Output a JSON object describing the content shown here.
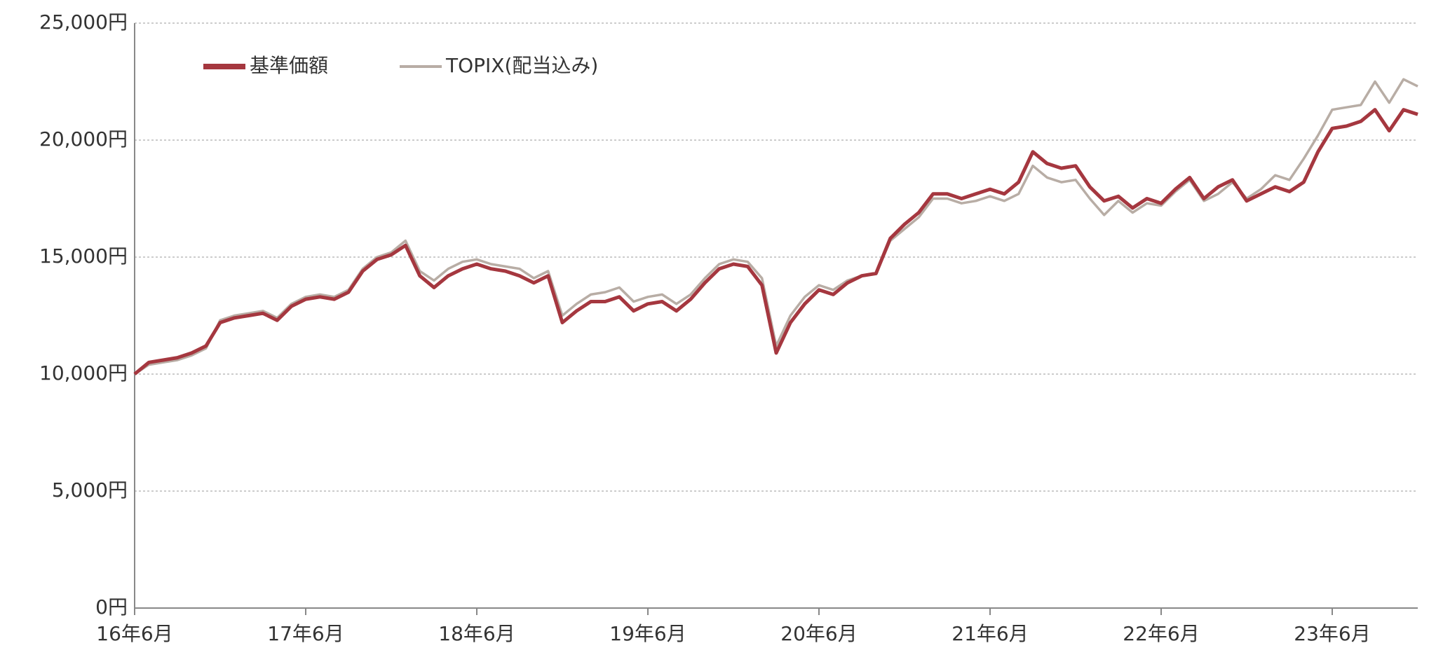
{
  "chart_data": {
    "type": "line",
    "x": [
      "2016-06",
      "2016-07",
      "2016-08",
      "2016-09",
      "2016-10",
      "2016-11",
      "2016-12",
      "2017-01",
      "2017-02",
      "2017-03",
      "2017-04",
      "2017-05",
      "2017-06",
      "2017-07",
      "2017-08",
      "2017-09",
      "2017-10",
      "2017-11",
      "2017-12",
      "2018-01",
      "2018-02",
      "2018-03",
      "2018-04",
      "2018-05",
      "2018-06",
      "2018-07",
      "2018-08",
      "2018-09",
      "2018-10",
      "2018-11",
      "2018-12",
      "2019-01",
      "2019-02",
      "2019-03",
      "2019-04",
      "2019-05",
      "2019-06",
      "2019-07",
      "2019-08",
      "2019-09",
      "2019-10",
      "2019-11",
      "2019-12",
      "2020-01",
      "2020-02",
      "2020-03",
      "2020-04",
      "2020-05",
      "2020-06",
      "2020-07",
      "2020-08",
      "2020-09",
      "2020-10",
      "2020-11",
      "2020-12",
      "2021-01",
      "2021-02",
      "2021-03",
      "2021-04",
      "2021-05",
      "2021-06",
      "2021-07",
      "2021-08",
      "2021-09",
      "2021-10",
      "2021-11",
      "2021-12",
      "2022-01",
      "2022-02",
      "2022-03",
      "2022-04",
      "2022-05",
      "2022-06",
      "2022-07",
      "2022-08",
      "2022-09",
      "2022-10",
      "2022-11",
      "2022-12",
      "2023-01",
      "2023-02",
      "2023-03",
      "2023-04",
      "2023-05",
      "2023-06",
      "2023-07",
      "2023-08",
      "2023-09",
      "2023-10",
      "2023-11",
      "2023-12"
    ],
    "series": [
      {
        "name": "基準価額",
        "color": "#a5373f",
        "values": [
          10000,
          10500,
          10600,
          10700,
          10900,
          11200,
          12200,
          12400,
          12500,
          12600,
          12300,
          12900,
          13200,
          13300,
          13200,
          13500,
          14400,
          14900,
          15100,
          15500,
          14200,
          13700,
          14200,
          14500,
          14700,
          14500,
          14400,
          14200,
          13900,
          14200,
          12200,
          12700,
          13100,
          13100,
          13300,
          12700,
          13000,
          13100,
          12700,
          13200,
          13900,
          14500,
          14700,
          14600,
          13800,
          10900,
          12200,
          13000,
          13600,
          13400,
          13900,
          14200,
          14300,
          15800,
          16400,
          16900,
          17700,
          17700,
          17500,
          17700,
          17900,
          17700,
          18200,
          19500,
          19000,
          18800,
          18900,
          18000,
          17400,
          17600,
          17100,
          17500,
          17300,
          17900,
          18400,
          17500,
          18000,
          18300,
          17400,
          17700,
          18000,
          17800,
          18200,
          19500,
          20500,
          20600,
          20800,
          21300,
          20400,
          21300,
          21100
        ]
      },
      {
        "name": "TOPIX(配当込み)",
        "color": "#b8ada5",
        "values": [
          10000,
          10400,
          10500,
          10600,
          10800,
          11100,
          12300,
          12500,
          12600,
          12700,
          12400,
          13000,
          13300,
          13400,
          13300,
          13600,
          14500,
          15000,
          15200,
          15700,
          14400,
          14000,
          14500,
          14800,
          14900,
          14700,
          14600,
          14500,
          14100,
          14400,
          12500,
          13000,
          13400,
          13500,
          13700,
          13100,
          13300,
          13400,
          13000,
          13400,
          14100,
          14700,
          14900,
          14800,
          14100,
          11200,
          12500,
          13300,
          13800,
          13600,
          14000,
          14200,
          14300,
          15700,
          16200,
          16700,
          17500,
          17500,
          17300,
          17400,
          17600,
          17400,
          17700,
          18900,
          18400,
          18200,
          18300,
          17500,
          16800,
          17400,
          16900,
          17300,
          17200,
          17800,
          18300,
          17400,
          17700,
          18200,
          17500,
          17900,
          18500,
          18300,
          19200,
          20200,
          21300,
          21400,
          21500,
          22500,
          21600,
          22600,
          22300
        ]
      }
    ],
    "xlim": [
      "2016-06",
      "2023-12"
    ],
    "xticks": [
      {
        "value": "2016-06",
        "label": "16年6月"
      },
      {
        "value": "2017-06",
        "label": "17年6月"
      },
      {
        "value": "2018-06",
        "label": "18年6月"
      },
      {
        "value": "2019-06",
        "label": "19年6月"
      },
      {
        "value": "2020-06",
        "label": "20年6月"
      },
      {
        "value": "2021-06",
        "label": "21年6月"
      },
      {
        "value": "2022-06",
        "label": "22年6月"
      },
      {
        "value": "2023-06",
        "label": "23年6月"
      }
    ],
    "ylim": [
      0,
      25000
    ],
    "yticks": [
      {
        "value": 0,
        "label": "0円"
      },
      {
        "value": 5000,
        "label": "5,000円"
      },
      {
        "value": 10000,
        "label": "10,000円"
      },
      {
        "value": 15000,
        "label": "15,000円"
      },
      {
        "value": 20000,
        "label": "20,000円"
      },
      {
        "value": 25000,
        "label": "25,000円"
      }
    ],
    "grid": true,
    "legend": "top-left"
  }
}
